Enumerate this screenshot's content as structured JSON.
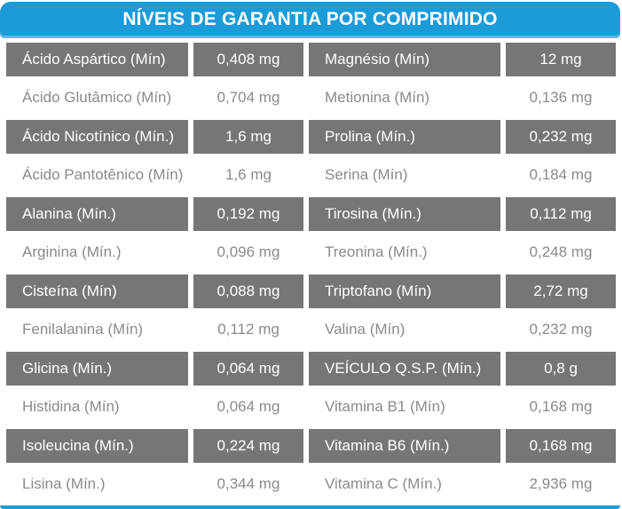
{
  "header": {
    "title": "NÍVEIS DE GARANTIA POR COMPRIMIDO"
  },
  "colors": {
    "accent_blue": "#1b9bd8",
    "accent_blue_light": "#5ab8e4",
    "band_gray": "#767679",
    "text_gray": "#8a8a8d",
    "text_on_band": "#ffffff"
  },
  "table": {
    "columns": [
      "nutrient",
      "amount",
      "nutrient",
      "amount"
    ],
    "rows": [
      {
        "shaded": true,
        "cells": [
          "Ácido Aspártico (Mín)",
          "0,408 mg",
          "Magnésio (Mín)",
          "12 mg"
        ]
      },
      {
        "shaded": false,
        "cells": [
          "Ácido Glutâmico (Mín)",
          "0,704 mg",
          "Metionina (Mín)",
          "0,136 mg"
        ]
      },
      {
        "shaded": true,
        "cells": [
          "Ácido Nicotínico (Mín.)",
          "1,6 mg",
          "Prolina (Mín.)",
          "0,232 mg"
        ]
      },
      {
        "shaded": false,
        "cells": [
          "Ácido Pantotênico (Mín)",
          "1,6 mg",
          "Serina (Mín)",
          "0,184 mg"
        ]
      },
      {
        "shaded": true,
        "cells": [
          "Alanina (Mín.)",
          "0,192 mg",
          "Tirosina (Mín.)",
          "0,112 mg"
        ]
      },
      {
        "shaded": false,
        "cells": [
          "Arginina (Mín.)",
          "0,096 mg",
          "Treonina (Mín.)",
          "0,248 mg"
        ]
      },
      {
        "shaded": true,
        "cells": [
          "Cisteína (Mín)",
          "0,088 mg",
          "Triptofano (Mín)",
          "2,72 mg"
        ]
      },
      {
        "shaded": false,
        "cells": [
          "Fenilalanina (Mín)",
          "0,112 mg",
          "Valina (Mín)",
          "0,232 mg"
        ]
      },
      {
        "shaded": true,
        "cells": [
          "Glicina (Mín.)",
          "0,064 mg",
          "VEÍCULO Q.S.P. (Mín.)",
          "0,8 g"
        ]
      },
      {
        "shaded": false,
        "cells": [
          "Histidina (Mín)",
          "0,064 mg",
          "Vitamina B1 (Mín)",
          "0,168 mg"
        ]
      },
      {
        "shaded": true,
        "cells": [
          "Isoleucina (Mín.)",
          "0,224 mg",
          "Vitamina B6 (Mín.)",
          "0,168 mg"
        ]
      },
      {
        "shaded": false,
        "cells": [
          "Lisina (Mín.)",
          "0,344 mg",
          "Vitamina C (Mín.)",
          "2,936 mg"
        ]
      }
    ]
  }
}
